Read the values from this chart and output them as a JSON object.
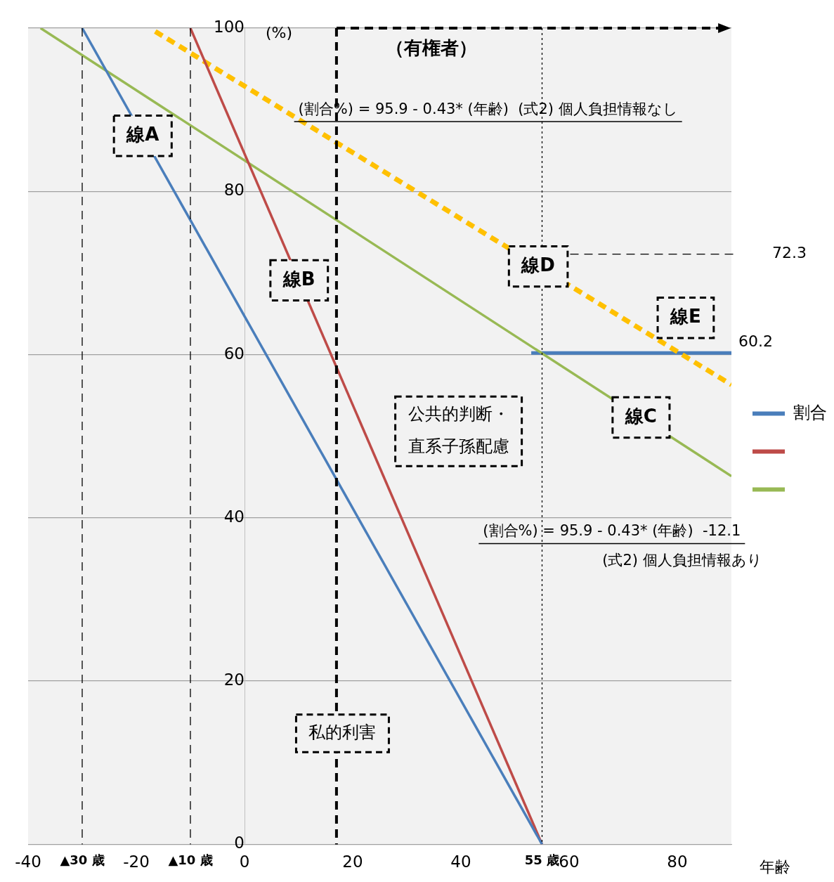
{
  "chart_data": {
    "type": "line",
    "ylabel": "(%)",
    "xlabel": "年齢",
    "xlim": [
      -40,
      90
    ],
    "ylim": [
      0,
      100
    ],
    "xticks": [
      -40,
      {
        "value": -30,
        "label": "▲30 歳"
      },
      -20,
      {
        "value": -10,
        "label": "▲10 歳"
      },
      0,
      20,
      40,
      {
        "value": 55,
        "label": "55 歳"
      },
      60,
      80
    ],
    "yticks": [
      0,
      20,
      40,
      60,
      80,
      100
    ],
    "grid": "y",
    "legend": "right",
    "series": [
      {
        "name": "割合",
        "color": "#4a7ebb",
        "x": [
          -30,
          55
        ],
        "values": [
          100,
          0
        ]
      },
      {
        "color": "#be4b48",
        "x": [
          -10,
          55
        ],
        "values": [
          100,
          0
        ]
      },
      {
        "color": "#98b954",
        "x": [
          -37.7,
          90
        ],
        "values": [
          100,
          45.1
        ]
      },
      {
        "color": "#ffc000",
        "line_style": "dashed",
        "x": [
          -16.5,
          90
        ],
        "values": [
          99.6,
          56.3
        ]
      },
      {
        "color": "#4a7ebb",
        "x": [
          53,
          90
        ],
        "values": [
          60.2,
          60.2
        ],
        "value_labels": [
          null,
          "60.2"
        ]
      }
    ],
    "ref_lines": [
      {
        "axis": "x",
        "value": -30,
        "line_style": "dashed"
      },
      {
        "axis": "x",
        "value": -10,
        "line_style": "dashed"
      },
      {
        "axis": "x",
        "value": 55,
        "line_style": "dotted"
      },
      {
        "axis": "x",
        "value": 17,
        "label": "（有権者）",
        "line_style": "dashed"
      },
      {
        "axis": "y",
        "value": 72.3,
        "label": "72.3",
        "line_style": "dashed"
      }
    ],
    "annotations": [
      {
        "text": "線A",
        "x": -18.8,
        "y": 86.8
      },
      {
        "text": "線B",
        "x": 10.1,
        "y": 69.1
      },
      {
        "text": "線C",
        "x": 73.3,
        "y": 52.3
      },
      {
        "text": "線D",
        "x": 54.3,
        "y": 70.8
      },
      "線E",
      "公共的判断・直系子孫配慮",
      "私的利害",
      "(割合%) = 95.9 - 0.43* (年齢)  (式2) 個人負担情報なし",
      "(割合%) = 95.9 - 0.43* (年齢)  -12.1",
      "(式2) 個人負担情報あり"
    ]
  }
}
